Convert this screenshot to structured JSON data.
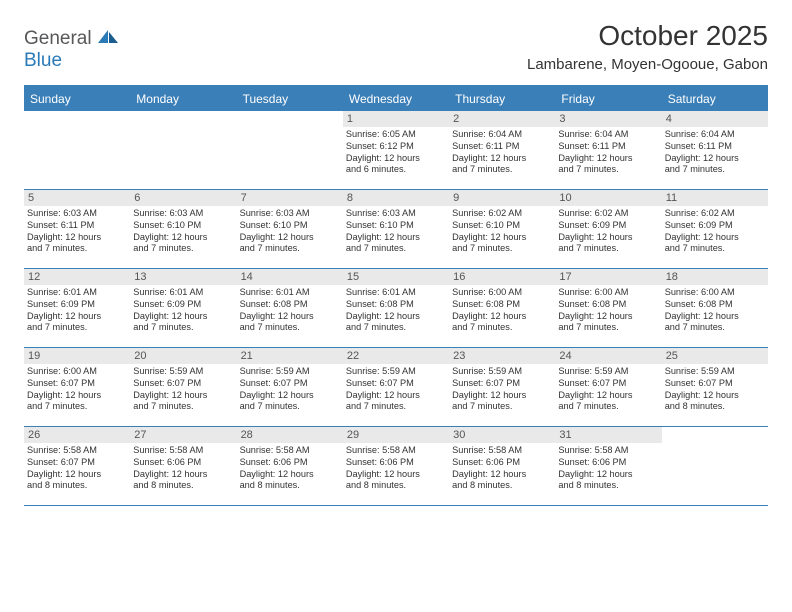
{
  "logo": {
    "general": "General",
    "blue": "Blue"
  },
  "title": "October 2025",
  "location": "Lambarene, Moyen-Ogooue, Gabon",
  "colors": {
    "header_bg": "#3b7fb8",
    "header_text": "#ffffff",
    "daybar_bg": "#e9e9e9",
    "daybar_text": "#555555",
    "body_text": "#333333",
    "logo_gray": "#57585a",
    "logo_blue": "#2a7ab8",
    "border": "#3b7fb8"
  },
  "dayheads": [
    "Sunday",
    "Monday",
    "Tuesday",
    "Wednesday",
    "Thursday",
    "Friday",
    "Saturday"
  ],
  "weeks": [
    [
      {
        "blank": true
      },
      {
        "blank": true
      },
      {
        "blank": true
      },
      {
        "n": "1",
        "sr": "Sunrise: 6:05 AM",
        "ss": "Sunset: 6:12 PM",
        "d1": "Daylight: 12 hours",
        "d2": "and 6 minutes."
      },
      {
        "n": "2",
        "sr": "Sunrise: 6:04 AM",
        "ss": "Sunset: 6:11 PM",
        "d1": "Daylight: 12 hours",
        "d2": "and 7 minutes."
      },
      {
        "n": "3",
        "sr": "Sunrise: 6:04 AM",
        "ss": "Sunset: 6:11 PM",
        "d1": "Daylight: 12 hours",
        "d2": "and 7 minutes."
      },
      {
        "n": "4",
        "sr": "Sunrise: 6:04 AM",
        "ss": "Sunset: 6:11 PM",
        "d1": "Daylight: 12 hours",
        "d2": "and 7 minutes."
      }
    ],
    [
      {
        "n": "5",
        "sr": "Sunrise: 6:03 AM",
        "ss": "Sunset: 6:11 PM",
        "d1": "Daylight: 12 hours",
        "d2": "and 7 minutes."
      },
      {
        "n": "6",
        "sr": "Sunrise: 6:03 AM",
        "ss": "Sunset: 6:10 PM",
        "d1": "Daylight: 12 hours",
        "d2": "and 7 minutes."
      },
      {
        "n": "7",
        "sr": "Sunrise: 6:03 AM",
        "ss": "Sunset: 6:10 PM",
        "d1": "Daylight: 12 hours",
        "d2": "and 7 minutes."
      },
      {
        "n": "8",
        "sr": "Sunrise: 6:03 AM",
        "ss": "Sunset: 6:10 PM",
        "d1": "Daylight: 12 hours",
        "d2": "and 7 minutes."
      },
      {
        "n": "9",
        "sr": "Sunrise: 6:02 AM",
        "ss": "Sunset: 6:10 PM",
        "d1": "Daylight: 12 hours",
        "d2": "and 7 minutes."
      },
      {
        "n": "10",
        "sr": "Sunrise: 6:02 AM",
        "ss": "Sunset: 6:09 PM",
        "d1": "Daylight: 12 hours",
        "d2": "and 7 minutes."
      },
      {
        "n": "11",
        "sr": "Sunrise: 6:02 AM",
        "ss": "Sunset: 6:09 PM",
        "d1": "Daylight: 12 hours",
        "d2": "and 7 minutes."
      }
    ],
    [
      {
        "n": "12",
        "sr": "Sunrise: 6:01 AM",
        "ss": "Sunset: 6:09 PM",
        "d1": "Daylight: 12 hours",
        "d2": "and 7 minutes."
      },
      {
        "n": "13",
        "sr": "Sunrise: 6:01 AM",
        "ss": "Sunset: 6:09 PM",
        "d1": "Daylight: 12 hours",
        "d2": "and 7 minutes."
      },
      {
        "n": "14",
        "sr": "Sunrise: 6:01 AM",
        "ss": "Sunset: 6:08 PM",
        "d1": "Daylight: 12 hours",
        "d2": "and 7 minutes."
      },
      {
        "n": "15",
        "sr": "Sunrise: 6:01 AM",
        "ss": "Sunset: 6:08 PM",
        "d1": "Daylight: 12 hours",
        "d2": "and 7 minutes."
      },
      {
        "n": "16",
        "sr": "Sunrise: 6:00 AM",
        "ss": "Sunset: 6:08 PM",
        "d1": "Daylight: 12 hours",
        "d2": "and 7 minutes."
      },
      {
        "n": "17",
        "sr": "Sunrise: 6:00 AM",
        "ss": "Sunset: 6:08 PM",
        "d1": "Daylight: 12 hours",
        "d2": "and 7 minutes."
      },
      {
        "n": "18",
        "sr": "Sunrise: 6:00 AM",
        "ss": "Sunset: 6:08 PM",
        "d1": "Daylight: 12 hours",
        "d2": "and 7 minutes."
      }
    ],
    [
      {
        "n": "19",
        "sr": "Sunrise: 6:00 AM",
        "ss": "Sunset: 6:07 PM",
        "d1": "Daylight: 12 hours",
        "d2": "and 7 minutes."
      },
      {
        "n": "20",
        "sr": "Sunrise: 5:59 AM",
        "ss": "Sunset: 6:07 PM",
        "d1": "Daylight: 12 hours",
        "d2": "and 7 minutes."
      },
      {
        "n": "21",
        "sr": "Sunrise: 5:59 AM",
        "ss": "Sunset: 6:07 PM",
        "d1": "Daylight: 12 hours",
        "d2": "and 7 minutes."
      },
      {
        "n": "22",
        "sr": "Sunrise: 5:59 AM",
        "ss": "Sunset: 6:07 PM",
        "d1": "Daylight: 12 hours",
        "d2": "and 7 minutes."
      },
      {
        "n": "23",
        "sr": "Sunrise: 5:59 AM",
        "ss": "Sunset: 6:07 PM",
        "d1": "Daylight: 12 hours",
        "d2": "and 7 minutes."
      },
      {
        "n": "24",
        "sr": "Sunrise: 5:59 AM",
        "ss": "Sunset: 6:07 PM",
        "d1": "Daylight: 12 hours",
        "d2": "and 7 minutes."
      },
      {
        "n": "25",
        "sr": "Sunrise: 5:59 AM",
        "ss": "Sunset: 6:07 PM",
        "d1": "Daylight: 12 hours",
        "d2": "and 8 minutes."
      }
    ],
    [
      {
        "n": "26",
        "sr": "Sunrise: 5:58 AM",
        "ss": "Sunset: 6:07 PM",
        "d1": "Daylight: 12 hours",
        "d2": "and 8 minutes."
      },
      {
        "n": "27",
        "sr": "Sunrise: 5:58 AM",
        "ss": "Sunset: 6:06 PM",
        "d1": "Daylight: 12 hours",
        "d2": "and 8 minutes."
      },
      {
        "n": "28",
        "sr": "Sunrise: 5:58 AM",
        "ss": "Sunset: 6:06 PM",
        "d1": "Daylight: 12 hours",
        "d2": "and 8 minutes."
      },
      {
        "n": "29",
        "sr": "Sunrise: 5:58 AM",
        "ss": "Sunset: 6:06 PM",
        "d1": "Daylight: 12 hours",
        "d2": "and 8 minutes."
      },
      {
        "n": "30",
        "sr": "Sunrise: 5:58 AM",
        "ss": "Sunset: 6:06 PM",
        "d1": "Daylight: 12 hours",
        "d2": "and 8 minutes."
      },
      {
        "n": "31",
        "sr": "Sunrise: 5:58 AM",
        "ss": "Sunset: 6:06 PM",
        "d1": "Daylight: 12 hours",
        "d2": "and 8 minutes."
      },
      {
        "blank": true
      }
    ]
  ]
}
